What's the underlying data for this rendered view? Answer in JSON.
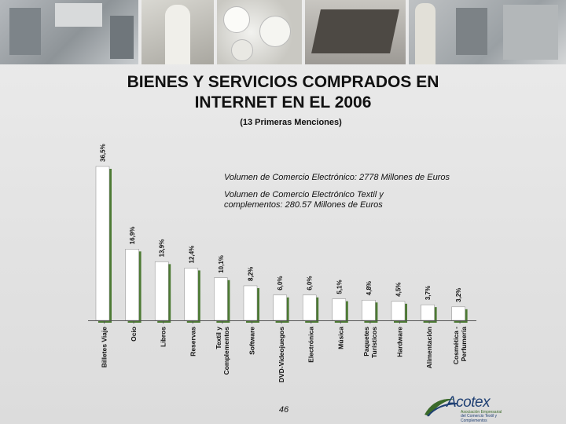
{
  "slide": {
    "title_line1": "BIENES Y SERVICIOS COMPRADOS EN",
    "title_line2": "INTERNET EN EL 2006",
    "subtitle": "(13 Primeras Menciones)",
    "note1": "Volumen de Comercio Electrónico: 2778 Millones de Euros",
    "note2": "Volumen de Comercio Electrónico Textil y complementos: 280.57 Millones de Euros",
    "page_number": "46",
    "logo": {
      "name": "Acotex",
      "tagline1": "Asociación Empresarial",
      "tagline2": "del Comercio Textil y Complementos"
    }
  },
  "colors": {
    "bar_fill": "#ffffff",
    "bar_shadow": "#4d7a34",
    "axis": "#555555",
    "logo_blue": "#1e3f73",
    "logo_green": "#3b6a2a"
  },
  "chart_data": {
    "type": "bar",
    "title": "BIENES Y SERVICIOS COMPRADOS EN INTERNET EN EL 2006",
    "subtitle": "(13 Primeras Menciones)",
    "categories": [
      "Billetes Viaje",
      "Ocio",
      "Libros",
      "Reservas",
      "Textil y Complementos",
      "Software",
      "DVD-Videojuegos",
      "Electrónica",
      "Música",
      "Paquetes Turísticos",
      "Hardware",
      "Alimentación",
      "Cosmética-Perfumería"
    ],
    "category_lines": [
      [
        "Billetes Viaje"
      ],
      [
        "Ocio"
      ],
      [
        "Libros"
      ],
      [
        "Reservas"
      ],
      [
        "Textil y",
        "Complementos"
      ],
      [
        "Software"
      ],
      [
        "DVD-Videojuegos"
      ],
      [
        "Electrónica"
      ],
      [
        "Música"
      ],
      [
        "Paquetes",
        "Turísticos"
      ],
      [
        "Hardware"
      ],
      [
        "Alimentación"
      ],
      [
        "Cosmética -",
        "Perfumería"
      ]
    ],
    "values": [
      36.5,
      16.9,
      13.9,
      12.4,
      10.1,
      8.2,
      6.0,
      6.0,
      5.1,
      4.8,
      4.5,
      3.7,
      3.2
    ],
    "value_labels": [
      "36,5%",
      "16,9%",
      "13,9%",
      "12,4%",
      "10,1%",
      "8,2%",
      "6,0%",
      "6,0%",
      "5,1%",
      "4,8%",
      "4,5%",
      "3,7%",
      "3,2%"
    ],
    "ylim": [
      0,
      36.5
    ],
    "xlabel": "",
    "ylabel": "",
    "grid": false
  }
}
